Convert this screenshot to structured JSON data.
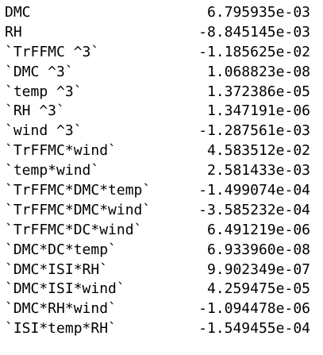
{
  "coefficients": [
    {
      "term": "DMC",
      "value": "6.795935e-03"
    },
    {
      "term": "RH",
      "value": "-8.845145e-03"
    },
    {
      "term": "`TrFFMC ^3`",
      "value": "-1.185625e-02"
    },
    {
      "term": "`DMC ^3`",
      "value": "1.068823e-08"
    },
    {
      "term": "`temp ^3`",
      "value": "1.372386e-05"
    },
    {
      "term": "`RH ^3`",
      "value": "1.347191e-06"
    },
    {
      "term": "`wind ^3`",
      "value": "-1.287561e-03"
    },
    {
      "term": "`TrFFMC*wind`",
      "value": "4.583512e-02"
    },
    {
      "term": "`temp*wind`",
      "value": "2.581433e-03"
    },
    {
      "term": "`TrFFMC*DMC*temp`",
      "value": "-1.499074e-04"
    },
    {
      "term": "`TrFFMC*DMC*wind`",
      "value": "-3.585232e-04"
    },
    {
      "term": "`TrFFMC*DC*wind`",
      "value": "6.491219e-06"
    },
    {
      "term": "`DMC*DC*temp`",
      "value": "6.933960e-08"
    },
    {
      "term": "`DMC*ISI*RH`",
      "value": "9.902349e-07"
    },
    {
      "term": "`DMC*ISI*wind`",
      "value": "4.259475e-05"
    },
    {
      "term": "`DMC*RH*wind`",
      "value": "-1.094478e-06"
    },
    {
      "term": "`ISI*temp*RH`",
      "value": "-1.549455e-04"
    }
  ]
}
